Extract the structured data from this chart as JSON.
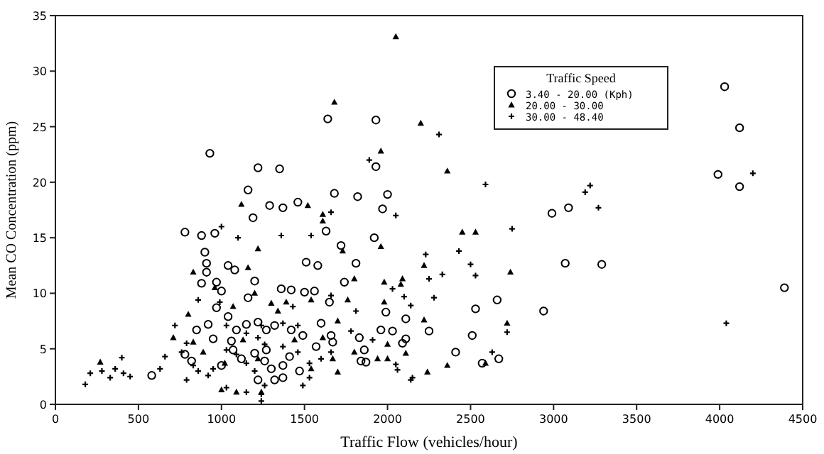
{
  "chart_data": {
    "type": "scatter",
    "xlabel": "Traffic Flow (vehicles/hour)",
    "ylabel": "Mean CO Concentration (ppm)",
    "legend_title": "Traffic Speed",
    "legend": "top right",
    "grid": false,
    "xlim": [
      0,
      4500
    ],
    "xticks": [
      0,
      500,
      1000,
      1500,
      2000,
      2500,
      3000,
      3500,
      4000,
      4500
    ],
    "ylim": [
      0,
      35
    ],
    "yticks": [
      0,
      5,
      10,
      15,
      20,
      25,
      30,
      35
    ],
    "series": [
      {
        "name": "3.40 - 20.00 (Kph)",
        "color": "#000000",
        "marker": "circle",
        "x": [
          930,
          1220,
          1350,
          1640,
          1930,
          1930,
          1680,
          1160,
          2000,
          1820,
          1970,
          1460,
          1290,
          1370,
          1190,
          780,
          880,
          960,
          1630,
          1920,
          1720,
          1510,
          1580,
          1810,
          900,
          910,
          910,
          1040,
          1080,
          880,
          970,
          1000,
          1160,
          1200,
          1360,
          1420,
          1500,
          1560,
          1650,
          1740,
          1990,
          970,
          1040,
          920,
          850,
          1090,
          1150,
          1220,
          1270,
          1320,
          1420,
          1490,
          1600,
          1660,
          1830,
          1960,
          2030,
          2110,
          2110,
          780,
          820,
          1000,
          1070,
          1120,
          1200,
          1260,
          1300,
          1370,
          1320,
          1370,
          1470,
          1570,
          1670,
          1860,
          1840,
          1870,
          580,
          1220,
          1270,
          950,
          1060,
          1410,
          4030,
          4120,
          3990,
          4120,
          2990,
          3090,
          3070,
          3290,
          4390,
          2530,
          2660,
          2940,
          2250,
          2510,
          2090,
          2410,
          2670,
          2570
        ],
        "values": [
          22.6,
          21.3,
          21.2,
          25.7,
          25.6,
          21.4,
          19.0,
          19.3,
          18.9,
          18.7,
          17.6,
          18.2,
          17.9,
          17.7,
          16.8,
          15.5,
          15.2,
          15.4,
          15.6,
          15.0,
          14.3,
          12.8,
          12.5,
          12.7,
          13.7,
          12.7,
          11.9,
          12.5,
          12.1,
          10.9,
          11.0,
          10.2,
          9.6,
          11.1,
          10.4,
          10.3,
          10.1,
          10.2,
          9.2,
          11.0,
          8.3,
          8.7,
          7.9,
          7.2,
          6.7,
          6.7,
          7.2,
          7.4,
          6.7,
          7.1,
          6.7,
          6.2,
          7.3,
          6.2,
          6.0,
          6.7,
          6.6,
          7.7,
          5.9,
          4.5,
          3.9,
          3.5,
          4.9,
          4.1,
          4.6,
          3.9,
          3.2,
          3.5,
          2.2,
          2.4,
          3.0,
          5.2,
          5.6,
          4.9,
          3.9,
          3.8,
          2.6,
          2.2,
          4.9,
          5.9,
          5.7,
          4.3,
          28.6,
          24.9,
          20.7,
          19.6,
          17.2,
          17.7,
          12.7,
          12.6,
          10.5,
          8.6,
          9.4,
          8.4,
          6.6,
          6.2,
          5.5,
          4.7,
          4.1,
          3.7
        ]
      },
      {
        "name": "20.00 - 30.00",
        "color": "#000000",
        "marker": "triangle",
        "x": [
          2050,
          1680,
          1960,
          1610,
          1610,
          1120,
          1520,
          1220,
          1160,
          830,
          1960,
          1730,
          1800,
          1980,
          2090,
          960,
          1200,
          800,
          1300,
          1390,
          1540,
          1760,
          1980,
          1070,
          1340,
          1700,
          710,
          830,
          890,
          1130,
          1440,
          1610,
          1800,
          2000,
          1020,
          1220,
          1540,
          1670,
          1000,
          1090,
          1240,
          1700,
          1940,
          2000,
          270,
          2200,
          2360,
          2530,
          2450,
          2220,
          2740,
          2080,
          2220,
          2720,
          2110,
          2360,
          2240,
          2590
        ],
        "values": [
          33.1,
          27.2,
          22.8,
          17.1,
          16.5,
          18.0,
          17.9,
          14.0,
          12.3,
          11.9,
          14.2,
          13.8,
          11.3,
          11.0,
          11.3,
          10.5,
          10.0,
          8.1,
          9.1,
          9.2,
          9.4,
          9.4,
          9.2,
          8.8,
          8.4,
          7.5,
          6.0,
          5.6,
          4.7,
          5.8,
          5.8,
          6.0,
          4.7,
          5.4,
          3.7,
          4.1,
          3.2,
          4.1,
          1.3,
          1.1,
          1.1,
          2.9,
          4.1,
          4.1,
          3.8,
          25.3,
          21.0,
          15.5,
          15.5,
          12.5,
          11.9,
          10.8,
          7.6,
          7.3,
          4.6,
          3.5,
          2.9,
          3.7
        ]
      },
      {
        "name": "30.00 - 48.40",
        "color": "#000000",
        "marker": "cross",
        "x": [
          180,
          210,
          280,
          360,
          410,
          450,
          400,
          330,
          630,
          660,
          720,
          790,
          830,
          860,
          920,
          950,
          990,
          1000,
          1100,
          1360,
          1540,
          1660,
          1890,
          2050,
          2030,
          2100,
          1030,
          1150,
          1220,
          1260,
          1370,
          1460,
          1530,
          1600,
          1660,
          1780,
          1910,
          2050,
          1030,
          1090,
          1150,
          1200,
          1260,
          1490,
          1530,
          1430,
          1660,
          1810,
          1370,
          1460,
          1240,
          1030,
          1150,
          1240,
          1240,
          860,
          760,
          790,
          2310,
          2590,
          3220,
          3190,
          3270,
          4200,
          2750,
          2430,
          2230,
          2500,
          2530,
          2250,
          2330,
          2280,
          2140,
          2720,
          4040,
          2630,
          2150,
          2140,
          2060
        ],
        "values": [
          1.8,
          2.8,
          3.0,
          3.2,
          2.8,
          2.5,
          4.2,
          2.4,
          3.2,
          4.3,
          7.1,
          2.2,
          3.5,
          3.0,
          2.6,
          3.2,
          9.2,
          16.0,
          15.0,
          15.2,
          15.2,
          17.3,
          22.0,
          17.0,
          10.4,
          9.7,
          7.1,
          6.4,
          6.0,
          5.4,
          5.2,
          4.7,
          3.7,
          4.1,
          4.7,
          6.6,
          5.8,
          3.6,
          4.9,
          4.5,
          3.7,
          3.0,
          1.7,
          1.7,
          2.4,
          8.8,
          9.8,
          8.4,
          7.3,
          7.1,
          7.1,
          1.5,
          1.1,
          0.9,
          0.3,
          9.4,
          4.7,
          5.5,
          24.3,
          19.8,
          19.7,
          19.1,
          17.7,
          20.8,
          15.8,
          13.8,
          13.5,
          12.6,
          11.6,
          11.3,
          11.7,
          9.6,
          8.9,
          6.5,
          7.3,
          4.7,
          2.4,
          2.2,
          3.1
        ]
      }
    ]
  }
}
